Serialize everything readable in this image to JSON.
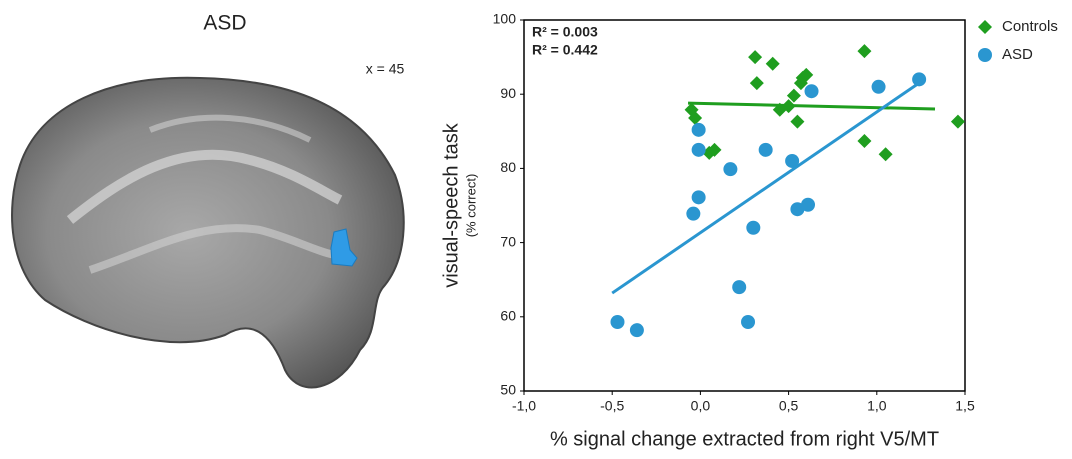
{
  "brain_panel": {
    "title": "ASD",
    "slice": "x = 45"
  },
  "chart_data": {
    "type": "scatter",
    "xlabel": "% signal change extracted from right V5/MT",
    "ylabel": "visual-speech task",
    "ylabel_sub": "(% correct)",
    "xlim": [
      -1,
      1.5
    ],
    "ylim": [
      50,
      100
    ],
    "xticks": [
      {
        "value": -1,
        "label": "-1,0"
      },
      {
        "value": -0.5,
        "label": "-0,5"
      },
      {
        "value": 0,
        "label": "0,0"
      },
      {
        "value": 0.5,
        "label": "0,5"
      },
      {
        "value": 1,
        "label": "1,0"
      },
      {
        "value": 1.5,
        "label": "1,5"
      }
    ],
    "yticks": [
      50,
      60,
      70,
      80,
      90,
      100
    ],
    "legend": "top-right",
    "series": [
      {
        "name": "Controls",
        "color": "#1f9e1f",
        "marker": "diamond",
        "x": [
          -0.05,
          -0.03,
          0.31,
          0.41,
          0.32,
          0.05,
          0.08,
          0.45,
          0.5,
          0.53,
          0.55,
          0.57,
          0.58,
          0.6,
          0.93,
          0.93,
          1.05,
          1.46
        ],
        "values": [
          87.9,
          86.8,
          95.0,
          94.1,
          91.5,
          82.1,
          82.5,
          87.9,
          88.4,
          89.8,
          86.3,
          91.5,
          92.2,
          92.6,
          95.8,
          83.7,
          81.9,
          86.3
        ]
      },
      {
        "name": "ASD",
        "color": "#2a96d0",
        "marker": "circle",
        "x": [
          -0.47,
          -0.36,
          -0.01,
          -0.01,
          -0.01,
          -0.04,
          0.17,
          0.22,
          0.27,
          0.37,
          0.3,
          0.52,
          0.55,
          0.61,
          0.63,
          1.01,
          1.24
        ],
        "values": [
          59.3,
          58.2,
          85.2,
          82.5,
          76.1,
          73.9,
          79.9,
          64.0,
          59.3,
          82.5,
          72.0,
          81.0,
          74.5,
          75.1,
          90.4,
          91.0,
          92.0
        ]
      }
    ],
    "trendlines": [
      {
        "color": "#1f9e1f",
        "x": [
          -0.07,
          1.33
        ],
        "y": [
          88.8,
          88.0
        ],
        "label": "R² = 0.003"
      },
      {
        "color": "#2a96d0",
        "x": [
          -0.5,
          1.27
        ],
        "y": [
          63.2,
          92.0
        ],
        "label": "R² = 0.442"
      }
    ]
  }
}
